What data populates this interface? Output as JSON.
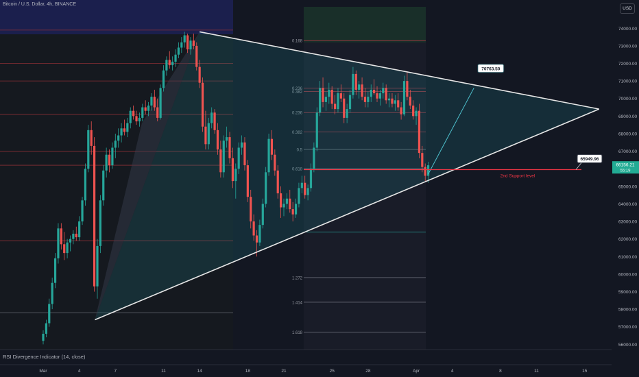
{
  "header": {
    "symbol": "Bitcoin / U.S. Dollar, 4h, BINANCE"
  },
  "currency": "USD",
  "indicator": {
    "label": "RSI Divergence Indicator (14, close)"
  },
  "colors": {
    "bg": "#131722",
    "up": "#26a69a",
    "down": "#ef5350",
    "trend": "#e6e6e6",
    "support": "#f23645",
    "fill": "#1f7e8a",
    "price_badge": "#22ab94"
  },
  "chart_data": {
    "type": "candlestick",
    "title": "Bitcoin / U.S. Dollar, 4h, BINANCE",
    "y_axis": {
      "range": [
        55700,
        75300
      ],
      "ticks": [
        56000,
        57000,
        58000,
        59000,
        60000,
        61000,
        62000,
        63000,
        64000,
        65000,
        66000,
        67000,
        68000,
        69000,
        70000,
        71000,
        72000,
        73000,
        74000
      ]
    },
    "x_axis": {
      "ticks": [
        {
          "label": "Mar",
          "day": 1
        },
        {
          "label": "4",
          "day": 4
        },
        {
          "label": "7",
          "day": 7
        },
        {
          "label": "11",
          "day": 11
        },
        {
          "label": "14",
          "day": 14
        },
        {
          "label": "18",
          "day": 18
        },
        {
          "label": "21",
          "day": 21
        },
        {
          "label": "25",
          "day": 25
        },
        {
          "label": "28",
          "day": 28
        },
        {
          "label": "Apr",
          "day": 32
        },
        {
          "label": "4",
          "day": 35
        },
        {
          "label": "8",
          "day": 39
        },
        {
          "label": "11",
          "day": 42
        },
        {
          "label": "15",
          "day": 46
        }
      ]
    },
    "trendlines": [
      {
        "name": "upper",
        "from": {
          "day": 14.0,
          "price": 73800
        },
        "to": {
          "day": 47.2,
          "price": 69400
        }
      },
      {
        "name": "lower",
        "from": {
          "day": 5.3,
          "price": 57400
        },
        "to": {
          "day": 47.2,
          "price": 69400
        }
      }
    ],
    "projection_label": {
      "value": "70763.50",
      "price": 70763.5,
      "day": 37.0
    },
    "support": {
      "label": "2nd Support level",
      "value": "65949.96",
      "price": 65950
    },
    "current_price": {
      "value": "66156.21",
      "countdown": "55:19",
      "price": 66156
    },
    "fib_levels": [
      {
        "label": "0.168",
        "price": 73300
      },
      {
        "label": "0.236",
        "price": 69200
      },
      {
        "label": "0.382",
        "price": 68100
      },
      {
        "label": "0.5",
        "price": 67100
      },
      {
        "label": "0.618",
        "price": 66000
      },
      {
        "label": "1.272",
        "price": 59800
      },
      {
        "label": "1.414",
        "price": 58400
      },
      {
        "label": "1.618",
        "price": 56700
      },
      {
        "label": "0.236",
        "price": 70600
      },
      {
        "label": "0.382",
        "price": 70400
      }
    ],
    "candles": [
      [
        1.0,
        56200,
        56800,
        56000,
        56600
      ],
      [
        1.25,
        56600,
        57400,
        56400,
        57200
      ],
      [
        1.5,
        57200,
        58600,
        57000,
        58300
      ],
      [
        1.75,
        58300,
        59800,
        58000,
        59500
      ],
      [
        2.0,
        59500,
        61200,
        59200,
        60900
      ],
      [
        2.25,
        60900,
        62900,
        60600,
        62600
      ],
      [
        2.5,
        62600,
        62900,
        61400,
        61700
      ],
      [
        2.75,
        61700,
        62400,
        60800,
        61200
      ],
      [
        3.0,
        61200,
        62000,
        60900,
        61800
      ],
      [
        3.25,
        61800,
        62200,
        61300,
        62000
      ],
      [
        3.5,
        62000,
        62500,
        61700,
        62300
      ],
      [
        3.75,
        62300,
        62700,
        61900,
        62100
      ],
      [
        4.0,
        62100,
        63300,
        61900,
        63000
      ],
      [
        4.25,
        63000,
        64400,
        62800,
        64200
      ],
      [
        4.5,
        64200,
        66300,
        63900,
        66000
      ],
      [
        4.75,
        66000,
        68500,
        65800,
        68200
      ],
      [
        5.0,
        68200,
        68700,
        66800,
        67300
      ],
      [
        5.25,
        67300,
        67800,
        59000,
        59300
      ],
      [
        5.5,
        59300,
        62000,
        58600,
        61600
      ],
      [
        5.75,
        61600,
        64500,
        61200,
        64200
      ],
      [
        6.0,
        64200,
        66200,
        63900,
        65900
      ],
      [
        6.25,
        65900,
        67200,
        65500,
        66800
      ],
      [
        6.5,
        66800,
        67100,
        65800,
        66200
      ],
      [
        6.75,
        66200,
        67500,
        66000,
        67200
      ],
      [
        7.0,
        67200,
        68000,
        66600,
        67600
      ],
      [
        7.25,
        67600,
        68300,
        67200,
        67900
      ],
      [
        7.5,
        67900,
        68600,
        67500,
        68300
      ],
      [
        7.75,
        68300,
        68800,
        67900,
        68100
      ],
      [
        8.0,
        68100,
        68900,
        67800,
        68600
      ],
      [
        8.25,
        68600,
        69500,
        68300,
        69300
      ],
      [
        8.5,
        69300,
        69600,
        68800,
        69000
      ],
      [
        8.75,
        69000,
        69300,
        68500,
        68700
      ],
      [
        9.0,
        68700,
        69200,
        68400,
        68900
      ],
      [
        9.25,
        68900,
        69700,
        68700,
        69500
      ],
      [
        9.5,
        69500,
        69900,
        69100,
        69300
      ],
      [
        9.75,
        69300,
        69800,
        69000,
        69600
      ],
      [
        10.0,
        69600,
        70300,
        69300,
        70100
      ],
      [
        10.25,
        70100,
        70500,
        69300,
        69500
      ],
      [
        10.5,
        69500,
        70000,
        68700,
        68900
      ],
      [
        10.75,
        68900,
        70800,
        68800,
        70600
      ],
      [
        11.0,
        70600,
        71900,
        70400,
        71600
      ],
      [
        11.25,
        71600,
        72400,
        71300,
        72200
      ],
      [
        11.5,
        72200,
        72700,
        71700,
        71900
      ],
      [
        11.75,
        71900,
        72400,
        71600,
        72100
      ],
      [
        12.0,
        72100,
        72800,
        71800,
        72500
      ],
      [
        12.25,
        72500,
        73200,
        72300,
        72900
      ],
      [
        12.5,
        72900,
        73500,
        72600,
        73200
      ],
      [
        12.75,
        73200,
        73800,
        72900,
        73600
      ],
      [
        13.0,
        73600,
        73700,
        72600,
        72800
      ],
      [
        13.25,
        72800,
        73500,
        72500,
        73300
      ],
      [
        13.5,
        73300,
        73700,
        72800,
        73000
      ],
      [
        13.75,
        73000,
        73200,
        71600,
        71800
      ],
      [
        14.0,
        71800,
        72200,
        70600,
        70900
      ],
      [
        14.25,
        70900,
        71200,
        68100,
        68400
      ],
      [
        14.5,
        68400,
        69300,
        67100,
        67400
      ],
      [
        14.75,
        67400,
        68900,
        67100,
        68600
      ],
      [
        15.0,
        68600,
        69500,
        68300,
        69200
      ],
      [
        15.25,
        69200,
        69400,
        68000,
        68200
      ],
      [
        15.5,
        68200,
        68600,
        66800,
        67100
      ],
      [
        15.75,
        67100,
        67600,
        65500,
        65800
      ],
      [
        16.0,
        65800,
        67900,
        65500,
        67600
      ],
      [
        16.25,
        67600,
        68400,
        67200,
        67800
      ],
      [
        16.5,
        67800,
        68100,
        66300,
        66600
      ],
      [
        16.75,
        66600,
        67200,
        64900,
        65300
      ],
      [
        17.0,
        65300,
        66300,
        64300,
        66000
      ],
      [
        17.25,
        66000,
        67500,
        65700,
        67200
      ],
      [
        17.5,
        67200,
        67900,
        66800,
        67500
      ],
      [
        17.75,
        67500,
        67800,
        65900,
        66200
      ],
      [
        18.0,
        66200,
        66500,
        64100,
        64400
      ],
      [
        18.25,
        64400,
        64800,
        62600,
        63000
      ],
      [
        18.5,
        63000,
        63400,
        61900,
        62200
      ],
      [
        18.75,
        62200,
        62500,
        61000,
        61800
      ],
      [
        19.0,
        61800,
        63100,
        61600,
        62800
      ],
      [
        19.25,
        62800,
        64300,
        62600,
        64000
      ],
      [
        19.5,
        64000,
        66100,
        63800,
        65800
      ],
      [
        19.75,
        65800,
        68000,
        65600,
        67700
      ],
      [
        20.0,
        67700,
        68200,
        66500,
        66800
      ],
      [
        20.25,
        66800,
        67100,
        65600,
        65900
      ],
      [
        20.5,
        65900,
        66200,
        64300,
        64600
      ],
      [
        20.75,
        64600,
        65000,
        63200,
        63800
      ],
      [
        21.0,
        63800,
        64300,
        63300,
        64000
      ],
      [
        21.25,
        64000,
        64600,
        63700,
        64300
      ],
      [
        21.5,
        64300,
        64800,
        63500,
        63700
      ],
      [
        21.75,
        63700,
        64100,
        63000,
        63400
      ],
      [
        22.0,
        63400,
        64300,
        63200,
        64000
      ],
      [
        22.25,
        64000,
        65200,
        63800,
        64900
      ],
      [
        22.5,
        64900,
        65600,
        64600,
        65200
      ],
      [
        22.75,
        65200,
        65600,
        64300,
        64500
      ],
      [
        23.0,
        64500,
        65100,
        64200,
        64900
      ],
      [
        23.25,
        64900,
        66300,
        64700,
        66000
      ],
      [
        23.5,
        66000,
        67500,
        65800,
        67200
      ],
      [
        23.75,
        67200,
        69500,
        67000,
        69200
      ],
      [
        24.0,
        69200,
        71000,
        69000,
        70600
      ],
      [
        24.25,
        70600,
        71200,
        69500,
        69800
      ],
      [
        24.5,
        69800,
        70400,
        69300,
        70100
      ],
      [
        24.75,
        70100,
        70900,
        69700,
        70500
      ],
      [
        25.0,
        70500,
        70700,
        69400,
        69700
      ],
      [
        25.25,
        69700,
        70200,
        69100,
        69400
      ],
      [
        25.5,
        69400,
        70600,
        69200,
        70300
      ],
      [
        25.75,
        70300,
        70800,
        69800,
        70000
      ],
      [
        26.0,
        70000,
        70300,
        68600,
        68900
      ],
      [
        26.25,
        68900,
        69700,
        68600,
        69400
      ],
      [
        26.5,
        69400,
        70500,
        69200,
        70200
      ],
      [
        26.75,
        70200,
        71800,
        70000,
        71400
      ],
      [
        27.0,
        71400,
        71600,
        70200,
        70500
      ],
      [
        27.25,
        70500,
        71000,
        70000,
        70800
      ],
      [
        27.5,
        70800,
        71200,
        69900,
        70100
      ],
      [
        27.75,
        70100,
        70600,
        69500,
        69800
      ],
      [
        28.0,
        69800,
        70400,
        69500,
        70100
      ],
      [
        28.25,
        70100,
        70800,
        69800,
        70500
      ],
      [
        28.5,
        70500,
        71100,
        70200,
        70300
      ],
      [
        28.75,
        70300,
        70700,
        69800,
        70000
      ],
      [
        29.0,
        70000,
        70500,
        69600,
        70300
      ],
      [
        29.25,
        70300,
        70900,
        70000,
        70600
      ],
      [
        29.5,
        70600,
        70800,
        69700,
        69900
      ],
      [
        29.75,
        69900,
        70300,
        69500,
        70000
      ],
      [
        30.0,
        70000,
        70300,
        69500,
        69700
      ],
      [
        30.25,
        69700,
        70200,
        69300,
        69900
      ],
      [
        30.5,
        69900,
        70300,
        69300,
        69500
      ],
      [
        30.75,
        69500,
        69800,
        68800,
        69100
      ],
      [
        31.0,
        69100,
        71300,
        69000,
        71000
      ],
      [
        31.25,
        71000,
        71500,
        69900,
        70100
      ],
      [
        31.5,
        70100,
        70500,
        69400,
        69600
      ],
      [
        31.75,
        69600,
        69900,
        68800,
        69000
      ],
      [
        32.0,
        69000,
        69500,
        68500,
        69300
      ],
      [
        32.25,
        69300,
        69700,
        66600,
        66900
      ],
      [
        32.5,
        66900,
        67300,
        65800,
        66100
      ],
      [
        32.75,
        66100,
        66300,
        65300,
        65600
      ],
      [
        33.0,
        65600,
        66400,
        65200,
        66200
      ]
    ]
  }
}
